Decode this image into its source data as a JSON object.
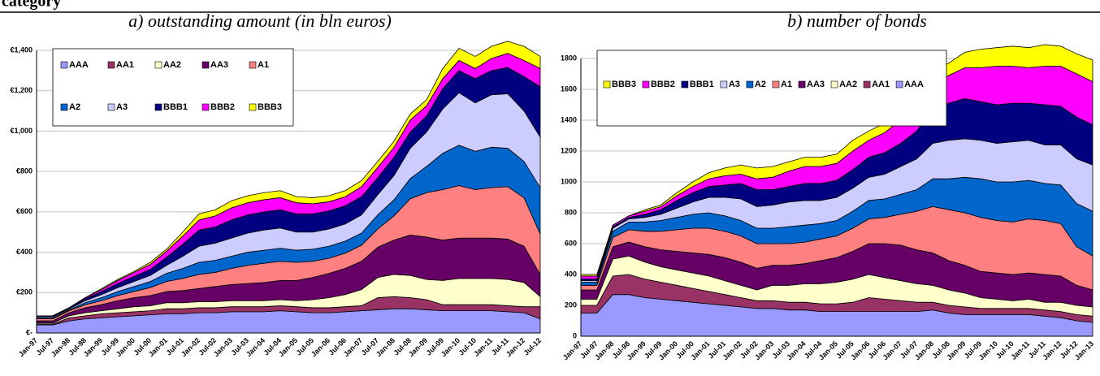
{
  "header_fragment": "category",
  "chart_data": [
    {
      "type": "stacked_area",
      "title": "a) outstanding amount (in bln euros)",
      "categories": [
        "Jan-97",
        "Jul-97",
        "Jan-98",
        "Jul-98",
        "Jan-99",
        "Jul-99",
        "Jan-00",
        "Jul-00",
        "Jan-01",
        "Jul-01",
        "Jan-02",
        "Jul-02",
        "Jan-03",
        "Jul-03",
        "Jan-04",
        "Jul-04",
        "Jan-05",
        "Jul-05",
        "Jan-06",
        "Jul-06",
        "Jan-07",
        "Jul-07",
        "Jan-08",
        "Jul-08",
        "Jan-09",
        "Jul-09",
        "Jan-10",
        "Jul-10",
        "Jan-11",
        "Jul-11",
        "Jan-12",
        "Jul-12"
      ],
      "ylim": [
        0,
        1400
      ],
      "yticks": [
        {
          "value": 0,
          "label": "€-"
        },
        {
          "value": 200,
          "label": "€200"
        },
        {
          "value": 400,
          "label": "€400"
        },
        {
          "value": 600,
          "label": "€600"
        },
        {
          "value": 800,
          "label": "€800"
        },
        {
          "value": 1000,
          "label": "€1,000"
        },
        {
          "value": 1200,
          "label": "€1,200"
        },
        {
          "value": 1400,
          "label": "€1,400"
        }
      ],
      "grid": true,
      "legend_order": "normal",
      "series": [
        {
          "name": "AAA",
          "color": "#9999ff",
          "values": [
            40,
            40,
            60,
            70,
            75,
            80,
            85,
            90,
            95,
            95,
            100,
            100,
            105,
            105,
            105,
            110,
            105,
            100,
            100,
            105,
            110,
            115,
            120,
            120,
            115,
            110,
            110,
            110,
            110,
            105,
            100,
            70
          ]
        },
        {
          "name": "AA1",
          "color": "#993366",
          "values": [
            5,
            5,
            15,
            15,
            20,
            20,
            20,
            20,
            25,
            25,
            25,
            25,
            25,
            25,
            25,
            25,
            25,
            25,
            25,
            25,
            25,
            60,
            60,
            55,
            50,
            30,
            30,
            30,
            30,
            30,
            30,
            60
          ]
        },
        {
          "name": "AA2",
          "color": "#ffffcc",
          "values": [
            5,
            5,
            10,
            15,
            15,
            20,
            25,
            25,
            30,
            30,
            30,
            30,
            30,
            30,
            30,
            30,
            30,
            40,
            50,
            60,
            80,
            100,
            110,
            110,
            100,
            120,
            130,
            130,
            130,
            130,
            120,
            50
          ]
        },
        {
          "name": "AA3",
          "color": "#660066",
          "values": [
            10,
            10,
            15,
            25,
            30,
            40,
            45,
            50,
            55,
            60,
            65,
            75,
            80,
            85,
            90,
            95,
            100,
            110,
            120,
            130,
            140,
            150,
            170,
            200,
            210,
            200,
            200,
            200,
            200,
            200,
            180,
            110
          ]
        },
        {
          "name": "A1",
          "color": "#ff8080",
          "values": [
            10,
            10,
            10,
            15,
            20,
            25,
            30,
            40,
            50,
            60,
            70,
            70,
            80,
            90,
            95,
            95,
            90,
            80,
            75,
            75,
            80,
            90,
            120,
            180,
            220,
            250,
            260,
            240,
            250,
            260,
            240,
            200
          ]
        },
        {
          "name": "A2",
          "color": "#0066cc",
          "values": [
            5,
            5,
            5,
            10,
            15,
            20,
            25,
            30,
            40,
            50,
            60,
            60,
            60,
            65,
            65,
            65,
            60,
            60,
            60,
            60,
            60,
            70,
            80,
            100,
            130,
            180,
            200,
            190,
            200,
            190,
            180,
            230
          ]
        },
        {
          "name": "A3",
          "color": "#ccccff",
          "values": [
            5,
            5,
            5,
            10,
            15,
            20,
            25,
            30,
            40,
            60,
            80,
            85,
            90,
            95,
            100,
            100,
            90,
            85,
            85,
            85,
            90,
            100,
            120,
            150,
            170,
            220,
            260,
            240,
            260,
            270,
            250,
            250
          ]
        },
        {
          "name": "BBB1",
          "color": "#000080",
          "values": [
            5,
            5,
            5,
            10,
            15,
            20,
            25,
            30,
            40,
            60,
            80,
            80,
            90,
            90,
            90,
            90,
            90,
            90,
            90,
            90,
            90,
            85,
            90,
            80,
            80,
            100,
            110,
            120,
            120,
            130,
            170,
            250
          ]
        },
        {
          "name": "BBB2",
          "color": "#ff00ff",
          "values": [
            0,
            0,
            0,
            5,
            10,
            15,
            20,
            25,
            30,
            40,
            50,
            55,
            60,
            60,
            60,
            60,
            55,
            50,
            45,
            45,
            50,
            50,
            50,
            60,
            50,
            50,
            50,
            50,
            60,
            70,
            80,
            90
          ]
        },
        {
          "name": "BBB3",
          "color": "#ffff00",
          "values": [
            0,
            0,
            0,
            0,
            5,
            5,
            5,
            10,
            10,
            20,
            30,
            30,
            35,
            35,
            35,
            35,
            30,
            30,
            30,
            30,
            30,
            30,
            30,
            30,
            30,
            50,
            60,
            60,
            60,
            60,
            70,
            60
          ]
        }
      ]
    },
    {
      "type": "stacked_area",
      "title": "b) number of bonds",
      "categories": [
        "Jan-97",
        "Jul-97",
        "Jan-98",
        "Jul-98",
        "Jan-99",
        "Jul-99",
        "Jan-00",
        "Jul-00",
        "Jan-01",
        "Jul-01",
        "Jan-02",
        "Jul-02",
        "Jan-03",
        "Jul-03",
        "Jan-04",
        "Jul-04",
        "Jan-05",
        "Jul-05",
        "Jan-06",
        "Jul-06",
        "Jan-07",
        "Jul-07",
        "Jan-08",
        "Jul-08",
        "Jan-09",
        "Jul-09",
        "Jan-10",
        "Jul-10",
        "Jan-11",
        "Jul-11",
        "Jan-12",
        "Jul-12",
        "Jan-13"
      ],
      "ylim": [
        0,
        1800
      ],
      "yticks": [
        0,
        200,
        400,
        600,
        800,
        1000,
        1200,
        1400,
        1600,
        1800
      ],
      "grid": true,
      "legend_order": "reverse",
      "series": [
        {
          "name": "AAA",
          "color": "#9999ff",
          "values": [
            150,
            150,
            270,
            270,
            250,
            240,
            230,
            220,
            210,
            200,
            190,
            180,
            180,
            170,
            170,
            160,
            160,
            160,
            160,
            160,
            160,
            160,
            170,
            150,
            140,
            140,
            140,
            140,
            140,
            130,
            120,
            100,
            90
          ]
        },
        {
          "name": "AA1",
          "color": "#993366",
          "values": [
            50,
            50,
            120,
            130,
            120,
            110,
            100,
            90,
            80,
            70,
            60,
            50,
            50,
            50,
            50,
            50,
            50,
            60,
            90,
            80,
            70,
            60,
            50,
            50,
            50,
            40,
            40,
            40,
            40,
            40,
            40,
            40,
            40
          ]
        },
        {
          "name": "AA2",
          "color": "#ffffcc",
          "values": [
            40,
            40,
            110,
            120,
            110,
            100,
            100,
            100,
            100,
            90,
            80,
            70,
            100,
            110,
            120,
            130,
            140,
            150,
            150,
            140,
            130,
            120,
            110,
            100,
            90,
            70,
            60,
            50,
            60,
            50,
            60,
            60,
            60
          ]
        },
        {
          "name": "AA3",
          "color": "#660066",
          "values": [
            60,
            60,
            80,
            90,
            100,
            110,
            120,
            130,
            140,
            150,
            150,
            140,
            130,
            130,
            130,
            150,
            160,
            180,
            200,
            220,
            230,
            220,
            210,
            190,
            180,
            170,
            170,
            170,
            170,
            180,
            170,
            130,
            110
          ]
        },
        {
          "name": "A1",
          "color": "#ff8080",
          "values": [
            30,
            30,
            60,
            80,
            100,
            120,
            140,
            160,
            170,
            170,
            170,
            160,
            140,
            140,
            140,
            140,
            140,
            150,
            160,
            170,
            200,
            250,
            300,
            330,
            340,
            350,
            340,
            340,
            350,
            350,
            340,
            250,
            220
          ]
        },
        {
          "name": "A2",
          "color": "#0066cc",
          "values": [
            20,
            20,
            40,
            50,
            60,
            70,
            80,
            90,
            100,
            100,
            100,
            100,
            100,
            110,
            110,
            100,
            100,
            110,
            120,
            120,
            130,
            140,
            180,
            200,
            230,
            250,
            250,
            260,
            250,
            240,
            250,
            280,
            290
          ]
        },
        {
          "name": "A3",
          "color": "#ccccff",
          "values": [
            10,
            10,
            20,
            20,
            30,
            40,
            60,
            80,
            100,
            120,
            140,
            140,
            150,
            160,
            160,
            150,
            150,
            150,
            150,
            160,
            180,
            200,
            230,
            250,
            250,
            250,
            250,
            260,
            260,
            250,
            260,
            290,
            300
          ]
        },
        {
          "name": "BBB1",
          "color": "#000080",
          "values": [
            10,
            10,
            10,
            10,
            20,
            30,
            50,
            60,
            70,
            80,
            100,
            110,
            100,
            100,
            110,
            110,
            110,
            120,
            130,
            140,
            150,
            180,
            220,
            240,
            260,
            250,
            250,
            250,
            240,
            260,
            250,
            270,
            260
          ]
        },
        {
          "name": "BBB2",
          "color": "#ff00ff",
          "values": [
            20,
            20,
            10,
            10,
            20,
            20,
            30,
            40,
            50,
            60,
            60,
            70,
            80,
            100,
            110,
            110,
            110,
            120,
            110,
            130,
            150,
            160,
            170,
            180,
            200,
            220,
            250,
            240,
            230,
            250,
            260,
            280,
            280
          ]
        },
        {
          "name": "BBB3",
          "color": "#ffff00",
          "values": [
            10,
            10,
            0,
            0,
            10,
            10,
            20,
            30,
            40,
            50,
            60,
            70,
            70,
            60,
            60,
            60,
            60,
            70,
            60,
            60,
            60,
            70,
            70,
            80,
            100,
            120,
            120,
            130,
            130,
            140,
            130,
            130,
            140
          ]
        }
      ]
    }
  ]
}
